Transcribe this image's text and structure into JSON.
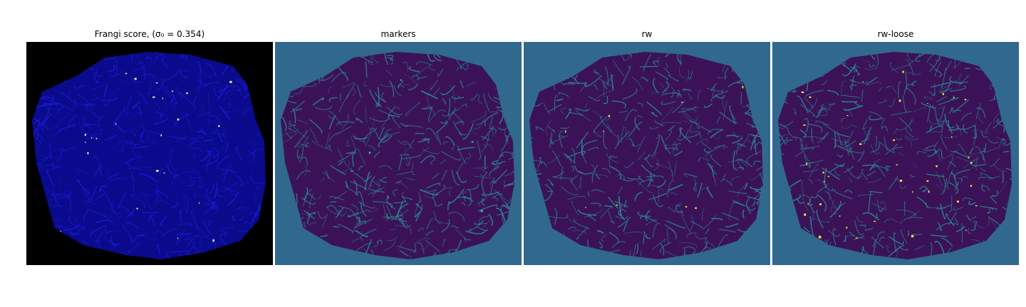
{
  "figure": {
    "panels": [
      {
        "title": "Frangi score, (σ₀ = 0.354)",
        "background": "#000000",
        "fill": "#0a0a8c",
        "line": "#1a1ad0",
        "speck": "#f4e8a0",
        "specks": 24
      },
      {
        "title": "markers",
        "background": "#31688e",
        "fill": "#3b1258",
        "line": "#2a8a8e",
        "speck": "#3bb8a0",
        "specks": 6
      },
      {
        "title": "rw",
        "background": "#31688e",
        "fill": "#3b1258",
        "line": "#2a8a8e",
        "speck": "#b5de2b",
        "specks": 10
      },
      {
        "title": "rw-loose",
        "background": "#31688e",
        "fill": "#3b1258",
        "line": "#2a8a8e",
        "speck": "#fde725",
        "specks": 40
      }
    ]
  }
}
